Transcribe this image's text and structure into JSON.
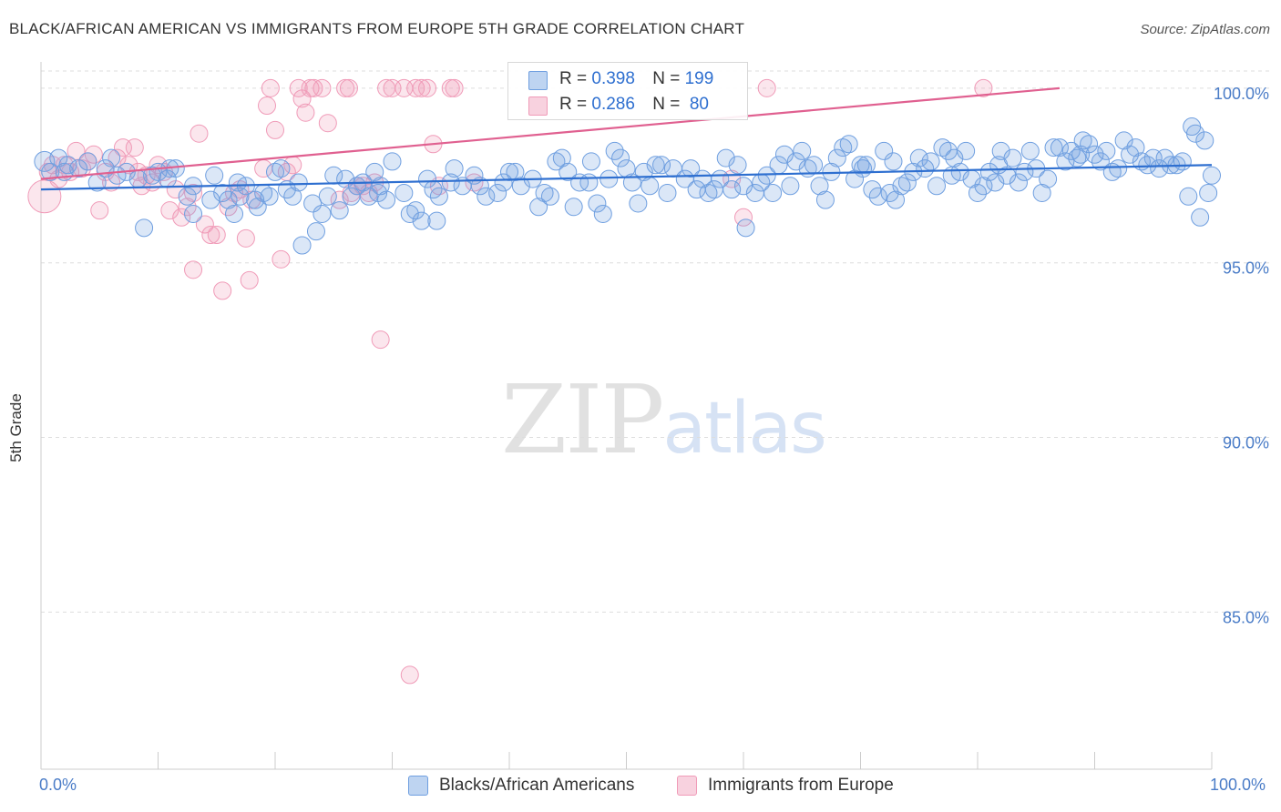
{
  "title": "BLACK/AFRICAN AMERICAN VS IMMIGRANTS FROM EUROPE 5TH GRADE CORRELATION CHART",
  "source": "Source: ZipAtlas.com",
  "watermark": {
    "zip": "ZIP",
    "atlas": "atlas"
  },
  "legend": {
    "blue_label": "Blacks/African Americans",
    "pink_label": "Immigrants from Europe",
    "blue_r_label": "R = ",
    "blue_r": "0.398",
    "blue_n_label": "N = ",
    "blue_n": "199",
    "pink_r_label": "R = ",
    "pink_r": "0.286",
    "pink_n_label": "N = ",
    "pink_n": " 80"
  },
  "colors": {
    "blue": "#6f9fe0",
    "blue_line": "#2e6fd0",
    "pink": "#f09bb8",
    "pink_line": "#e06090",
    "grid": "#dddddd",
    "axis_text": "#4a7cc7"
  },
  "chart_data": {
    "type": "scatter",
    "title": "BLACK/AFRICAN AMERICAN VS IMMIGRANTS FROM EUROPE 5TH GRADE CORRELATION CHART",
    "xlabel": "",
    "ylabel": "5th Grade",
    "x_tick_labels": [
      "0.0%",
      "100.0%"
    ],
    "y_tick_labels": [
      "100.0%",
      "95.0%",
      "90.0%",
      "85.0%"
    ],
    "y_ticks": [
      100,
      95,
      90,
      85
    ],
    "xlim": [
      0,
      100
    ],
    "ylim": [
      80.5,
      100.7
    ],
    "grid": true,
    "series": [
      {
        "name": "Blacks/African Americans",
        "color": "#6f9fe0",
        "trend": {
          "x": [
            0,
            100
          ],
          "y": [
            97.1,
            97.8
          ]
        },
        "points": [
          [
            0.3,
            97.9
          ],
          [
            0.8,
            97.6
          ],
          [
            1.5,
            98.0
          ],
          [
            2.3,
            97.8
          ],
          [
            3.2,
            97.7
          ],
          [
            4,
            97.9
          ],
          [
            4.8,
            97.3
          ],
          [
            5.5,
            97.7
          ],
          [
            6.5,
            97.5
          ],
          [
            7.3,
            97.6
          ],
          [
            8.3,
            97.4
          ],
          [
            8.8,
            96.0
          ],
          [
            10,
            97.6
          ],
          [
            10.8,
            97.4
          ],
          [
            11.5,
            97.7
          ],
          [
            12.5,
            96.9
          ],
          [
            13,
            96.4
          ],
          [
            13,
            97.2
          ],
          [
            14.5,
            96.8
          ],
          [
            14.8,
            97.5
          ],
          [
            15.5,
            97.0
          ],
          [
            16,
            96.8
          ],
          [
            16.5,
            96.4
          ],
          [
            17,
            96.9
          ],
          [
            17.5,
            97.2
          ],
          [
            18.3,
            96.8
          ],
          [
            18.5,
            96.6
          ],
          [
            19,
            97.0
          ],
          [
            20,
            97.6
          ],
          [
            20.5,
            97.7
          ],
          [
            21,
            97.1
          ],
          [
            21.5,
            96.9
          ],
          [
            22,
            97.3
          ],
          [
            22.3,
            95.5
          ],
          [
            23.2,
            96.7
          ],
          [
            23.5,
            95.9
          ],
          [
            24,
            96.4
          ],
          [
            24.5,
            96.9
          ],
          [
            25,
            97.5
          ],
          [
            25.5,
            96.5
          ],
          [
            26,
            97.4
          ],
          [
            26.5,
            96.9
          ],
          [
            27,
            97.2
          ],
          [
            27.5,
            97.3
          ],
          [
            28,
            96.9
          ],
          [
            28.5,
            97.6
          ],
          [
            29,
            97.2
          ],
          [
            29.5,
            96.8
          ],
          [
            30,
            97.9
          ],
          [
            31,
            97.0
          ],
          [
            31.5,
            96.4
          ],
          [
            32,
            96.5
          ],
          [
            32.5,
            96.2
          ],
          [
            33,
            97.4
          ],
          [
            33.5,
            97.1
          ],
          [
            34,
            96.9
          ],
          [
            35,
            97.3
          ],
          [
            35.3,
            97.7
          ],
          [
            36,
            97.2
          ],
          [
            37,
            97.5
          ],
          [
            37.5,
            97.2
          ],
          [
            38,
            96.9
          ],
          [
            39,
            97.0
          ],
          [
            39.5,
            97.3
          ],
          [
            40.5,
            97.6
          ],
          [
            41,
            97.2
          ],
          [
            42,
            97.4
          ],
          [
            42.5,
            96.6
          ],
          [
            43,
            97.0
          ],
          [
            44,
            97.9
          ],
          [
            44.5,
            98.0
          ],
          [
            45,
            97.6
          ],
          [
            45.5,
            96.6
          ],
          [
            46,
            97.3
          ],
          [
            47,
            97.9
          ],
          [
            47.5,
            96.7
          ],
          [
            48,
            96.4
          ],
          [
            48.5,
            97.4
          ],
          [
            49,
            98.2
          ],
          [
            49.5,
            98.0
          ],
          [
            50,
            97.7
          ],
          [
            50.5,
            97.3
          ],
          [
            51,
            96.7
          ],
          [
            51.5,
            97.6
          ],
          [
            52,
            97.2
          ],
          [
            53,
            97.8
          ],
          [
            53.5,
            97.0
          ],
          [
            54,
            97.7
          ],
          [
            55,
            97.4
          ],
          [
            55.5,
            97.7
          ],
          [
            56,
            97.1
          ],
          [
            57,
            97.0
          ],
          [
            57.5,
            97.1
          ],
          [
            58,
            97.4
          ],
          [
            58.5,
            98.0
          ],
          [
            59,
            97.1
          ],
          [
            60,
            97.2
          ],
          [
            60.2,
            96.0
          ],
          [
            61,
            97.0
          ],
          [
            61.5,
            97.3
          ],
          [
            62,
            97.5
          ],
          [
            63,
            97.8
          ],
          [
            63.5,
            98.1
          ],
          [
            64,
            97.2
          ],
          [
            64.5,
            97.9
          ],
          [
            65,
            98.2
          ],
          [
            65.5,
            97.7
          ],
          [
            66,
            97.8
          ],
          [
            66.5,
            97.2
          ],
          [
            67,
            96.8
          ],
          [
            67.5,
            97.6
          ],
          [
            68,
            98.0
          ],
          [
            68.5,
            98.3
          ],
          [
            69,
            98.4
          ],
          [
            69.5,
            97.4
          ],
          [
            70,
            97.8
          ],
          [
            70.5,
            97.8
          ],
          [
            71,
            97.1
          ],
          [
            71.5,
            96.9
          ],
          [
            72,
            98.2
          ],
          [
            72.5,
            97.0
          ],
          [
            73,
            96.8
          ],
          [
            73.5,
            97.2
          ],
          [
            74,
            97.3
          ],
          [
            74.5,
            97.6
          ],
          [
            75,
            98.0
          ],
          [
            75.5,
            97.7
          ],
          [
            76,
            97.9
          ],
          [
            76.5,
            97.2
          ],
          [
            77,
            98.3
          ],
          [
            77.5,
            98.2
          ],
          [
            78,
            98.0
          ],
          [
            78.5,
            97.6
          ],
          [
            79,
            98.2
          ],
          [
            79.5,
            97.4
          ],
          [
            80,
            97.0
          ],
          [
            80.5,
            97.2
          ],
          [
            81,
            97.6
          ],
          [
            81.5,
            97.3
          ],
          [
            82,
            98.2
          ],
          [
            82.5,
            97.5
          ],
          [
            83,
            98.0
          ],
          [
            83.5,
            97.3
          ],
          [
            84,
            97.6
          ],
          [
            84.5,
            98.2
          ],
          [
            85,
            97.7
          ],
          [
            85.5,
            97.0
          ],
          [
            86,
            97.4
          ],
          [
            86.5,
            98.3
          ],
          [
            87,
            98.3
          ],
          [
            87.5,
            97.9
          ],
          [
            88,
            98.2
          ],
          [
            88.5,
            98.0
          ],
          [
            89,
            98.5
          ],
          [
            89.5,
            98.4
          ],
          [
            90,
            98.1
          ],
          [
            90.5,
            97.9
          ],
          [
            91,
            98.2
          ],
          [
            91.5,
            97.6
          ],
          [
            92,
            97.7
          ],
          [
            92.5,
            98.5
          ],
          [
            93,
            98.1
          ],
          [
            93.5,
            98.3
          ],
          [
            94,
            97.9
          ],
          [
            94.5,
            97.8
          ],
          [
            95,
            98.0
          ],
          [
            95.5,
            97.7
          ],
          [
            96,
            98.0
          ],
          [
            96.5,
            97.8
          ],
          [
            97,
            97.8
          ],
          [
            97.5,
            97.9
          ],
          [
            98,
            96.9
          ],
          [
            98.3,
            98.9
          ],
          [
            98.6,
            98.7
          ],
          [
            99,
            96.3
          ],
          [
            99.4,
            98.5
          ],
          [
            99.7,
            97.0
          ],
          [
            100,
            97.5
          ],
          [
            2,
            97.6
          ],
          [
            6,
            98.0
          ],
          [
            9.5,
            97.5
          ],
          [
            11,
            97.7
          ],
          [
            16.8,
            97.3
          ],
          [
            19.5,
            96.9
          ],
          [
            28.8,
            97.0
          ],
          [
            33.8,
            96.2
          ],
          [
            40,
            97.6
          ],
          [
            43.5,
            96.9
          ],
          [
            46.8,
            97.3
          ],
          [
            52.5,
            97.8
          ],
          [
            56.5,
            97.4
          ],
          [
            59.5,
            97.8
          ],
          [
            62.5,
            97.0
          ],
          [
            70.2,
            97.7
          ],
          [
            72.8,
            97.9
          ],
          [
            77.8,
            97.5
          ],
          [
            81.8,
            97.8
          ],
          [
            88.8,
            98.1
          ]
        ]
      },
      {
        "name": "Immigrants from Europe",
        "color": "#f09bb8",
        "trend": {
          "x": [
            0,
            87
          ],
          "y": [
            97.4,
            100
          ]
        },
        "points": [
          [
            0.3,
            96.9
          ],
          [
            0.6,
            97.6
          ],
          [
            1,
            97.8
          ],
          [
            1.5,
            97.4
          ],
          [
            2,
            97.8
          ],
          [
            2.5,
            97.6
          ],
          [
            3,
            98.2
          ],
          [
            3.5,
            97.7
          ],
          [
            4,
            97.9
          ],
          [
            4.5,
            98.1
          ],
          [
            5,
            96.5
          ],
          [
            5.5,
            97.6
          ],
          [
            6,
            97.3
          ],
          [
            6.5,
            98.0
          ],
          [
            7,
            98.3
          ],
          [
            7.5,
            97.8
          ],
          [
            8,
            98.3
          ],
          [
            8.3,
            97.6
          ],
          [
            8.6,
            97.2
          ],
          [
            9,
            97.5
          ],
          [
            9.5,
            97.3
          ],
          [
            10,
            97.8
          ],
          [
            10.5,
            97.6
          ],
          [
            11,
            96.5
          ],
          [
            11.5,
            97.1
          ],
          [
            12,
            96.3
          ],
          [
            12.5,
            96.6
          ],
          [
            13,
            97.0
          ],
          [
            13,
            94.8
          ],
          [
            13.5,
            98.7
          ],
          [
            14,
            96.1
          ],
          [
            14.5,
            95.8
          ],
          [
            15,
            95.8
          ],
          [
            15.5,
            94.2
          ],
          [
            16,
            96.6
          ],
          [
            16.5,
            97.0
          ],
          [
            17,
            97.1
          ],
          [
            17.5,
            95.7
          ],
          [
            17.8,
            94.5
          ],
          [
            18,
            96.8
          ],
          [
            19,
            97.7
          ],
          [
            19.3,
            99.5
          ],
          [
            19.6,
            100.0
          ],
          [
            20,
            98.8
          ],
          [
            20.5,
            95.1
          ],
          [
            21,
            97.6
          ],
          [
            21.5,
            97.8
          ],
          [
            22,
            100.0
          ],
          [
            22.3,
            99.7
          ],
          [
            22.6,
            99.3
          ],
          [
            23,
            100.0
          ],
          [
            23.3,
            100.0
          ],
          [
            24,
            100.0
          ],
          [
            24.5,
            99.0
          ],
          [
            25.5,
            96.8
          ],
          [
            26,
            100.0
          ],
          [
            26.3,
            100.0
          ],
          [
            26.5,
            97.0
          ],
          [
            27,
            97.2
          ],
          [
            27.5,
            97.2
          ],
          [
            28,
            97.0
          ],
          [
            28.5,
            97.3
          ],
          [
            29,
            92.8
          ],
          [
            29.5,
            100.0
          ],
          [
            30,
            100.0
          ],
          [
            31,
            100.0
          ],
          [
            31.5,
            83.2
          ],
          [
            32,
            100.0
          ],
          [
            32.5,
            100.0
          ],
          [
            33,
            100.0
          ],
          [
            33.5,
            98.4
          ],
          [
            34,
            97.2
          ],
          [
            35,
            100.0
          ],
          [
            35.3,
            100.0
          ],
          [
            37,
            97.3
          ],
          [
            59,
            97.4
          ],
          [
            60,
            96.3
          ],
          [
            62,
            100.0
          ],
          [
            80.5,
            100.0
          ]
        ]
      }
    ]
  }
}
